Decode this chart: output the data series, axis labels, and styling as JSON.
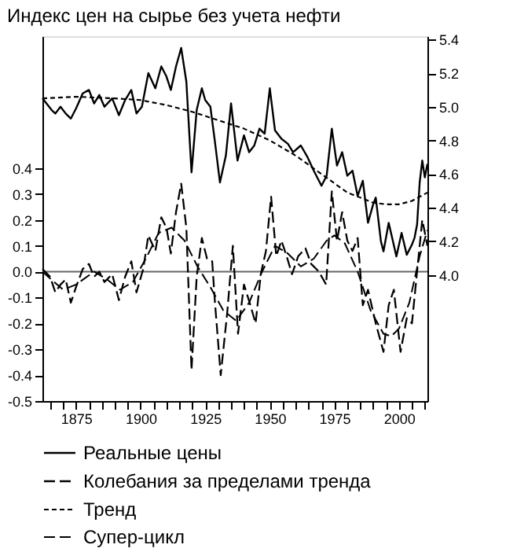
{
  "chart_data": {
    "type": "line",
    "title": "Индекс цен на сырье без учета нефти",
    "xlim": [
      1862,
      2011
    ],
    "xticks": [
      {
        "value": 1865,
        "label": null
      },
      {
        "value": 1870,
        "label": null
      },
      1875,
      {
        "value": 1880,
        "label": null
      },
      {
        "value": 1885,
        "label": null
      },
      {
        "value": 1890,
        "label": null
      },
      {
        "value": 1895,
        "label": null
      },
      1900,
      {
        "value": 1905,
        "label": null
      },
      {
        "value": 1910,
        "label": null
      },
      {
        "value": 1915,
        "label": null
      },
      {
        "value": 1920,
        "label": null
      },
      1925,
      {
        "value": 1930,
        "label": null
      },
      {
        "value": 1935,
        "label": null
      },
      {
        "value": 1940,
        "label": null
      },
      {
        "value": 1945,
        "label": null
      },
      1950,
      {
        "value": 1955,
        "label": null
      },
      {
        "value": 1960,
        "label": null
      },
      {
        "value": 1965,
        "label": null
      },
      {
        "value": 1970,
        "label": null
      },
      1975,
      {
        "value": 1980,
        "label": null
      },
      {
        "value": 1985,
        "label": null
      },
      {
        "value": 1990,
        "label": null
      },
      {
        "value": 1995,
        "label": null
      },
      2000,
      {
        "value": 2005,
        "label": null
      },
      {
        "value": 2010,
        "label": null
      }
    ],
    "ylim": [
      -0.5,
      0.91
    ],
    "yticks": [
      -0.5,
      -0.4,
      -0.3,
      -0.2,
      -0.1,
      {
        "value": 0,
        "label": "0.0"
      },
      0.1,
      0.2,
      0.3,
      0.4
    ],
    "y2lim": [
      3.25,
      5.42
    ],
    "y2ticks": [
      {
        "value": 4,
        "label": "4.0"
      },
      4.2,
      4.4,
      4.6,
      4.8,
      {
        "value": 5,
        "label": "5.0"
      },
      5.2,
      5.4
    ],
    "grid": false,
    "legend": "bottom",
    "ref_lines": [
      {
        "axis": "y",
        "value": 0,
        "color": "#666666",
        "line_style": "solid"
      }
    ],
    "series": [
      {
        "name": "Реальные цены",
        "color": "#000000",
        "line_style": "solid",
        "axis": "y2",
        "x": [
          1862,
          1865.6,
          1867,
          1869,
          1871,
          1873,
          1875,
          1877.6,
          1880,
          1882,
          1884,
          1886,
          1889,
          1891.6,
          1894,
          1896.4,
          1898.4,
          1900.5,
          1903,
          1905.7,
          1908,
          1910,
          1911.7,
          1913.7,
          1915.7,
          1917.7,
          1919.7,
          1921.7,
          1923.7,
          1925,
          1927,
          1928.7,
          1930.7,
          1933,
          1935,
          1937.5,
          1940,
          1942,
          1944,
          1946,
          1948,
          1950,
          1952,
          1954.5,
          1957,
          1959,
          1962,
          1964.6,
          1967,
          1970,
          1972,
          1974,
          1976,
          1978,
          1980,
          1982,
          1984,
          1986,
          1988,
          1990,
          1991,
          1993,
          1994,
          1996,
          1999,
          2001,
          2003,
          2005,
          2006,
          2007,
          2008,
          2009,
          2010,
          2011
        ],
        "values": [
          5.05,
          4.98,
          4.96,
          5.0,
          4.96,
          4.93,
          4.99,
          5.08,
          5.1,
          5.02,
          5.07,
          5.0,
          5.05,
          4.95,
          5.04,
          5.1,
          4.96,
          5.0,
          5.2,
          5.11,
          5.24,
          5.18,
          5.1,
          5.24,
          5.35,
          5.15,
          4.61,
          4.98,
          5.11,
          5.04,
          5.0,
          4.8,
          4.55,
          4.71,
          5.02,
          4.68,
          4.83,
          4.73,
          4.77,
          4.87,
          4.84,
          5.11,
          4.86,
          4.81,
          4.78,
          4.73,
          4.77,
          4.7,
          4.62,
          4.53,
          4.59,
          4.87,
          4.65,
          4.73,
          4.59,
          4.62,
          4.47,
          4.56,
          4.31,
          4.42,
          4.46,
          4.2,
          4.14,
          4.31,
          4.11,
          4.25,
          4.12,
          4.18,
          4.22,
          4.3,
          4.55,
          4.68,
          4.58,
          4.66
        ]
      },
      {
        "name": "Колебания за пределами тренда",
        "color": "#000000",
        "line_style": "dashed",
        "axis": "y",
        "x": [
          1862,
          1865,
          1867,
          1869,
          1871,
          1873,
          1875,
          1877.6,
          1880,
          1882,
          1884,
          1886,
          1889,
          1891.6,
          1894,
          1896.4,
          1898.4,
          1901,
          1903,
          1905.7,
          1908,
          1910,
          1911.7,
          1913.7,
          1915.7,
          1917.7,
          1919.7,
          1921.7,
          1923.7,
          1925.7,
          1927.7,
          1928.7,
          1931,
          1933.5,
          1935.7,
          1937.7,
          1940,
          1942.5,
          1944.5,
          1946.5,
          1948.5,
          1950.5,
          1952.5,
          1954.5,
          1956.5,
          1958.6,
          1961,
          1963.8,
          1966,
          1969,
          1971.8,
          1974,
          1976,
          1978,
          1980,
          1982,
          1984,
          1986,
          1988,
          1991,
          1994,
          1996,
          1998,
          2000.6,
          2003,
          2005,
          2007,
          2009,
          2011
        ],
        "values": [
          0.01,
          -0.02,
          -0.08,
          -0.05,
          -0.03,
          -0.12,
          -0.06,
          0.01,
          0.03,
          -0.02,
          0.0,
          -0.04,
          -0.01,
          -0.11,
          -0.02,
          0.04,
          -0.08,
          0.01,
          0.14,
          0.08,
          0.21,
          0.17,
          0.07,
          0.23,
          0.34,
          0.17,
          -0.38,
          -0.02,
          0.13,
          0.05,
          0.04,
          -0.11,
          -0.4,
          -0.16,
          0.1,
          -0.24,
          -0.05,
          -0.13,
          -0.2,
          -0.01,
          0.08,
          0.29,
          0.06,
          0.12,
          0.06,
          -0.01,
          0.06,
          0.09,
          0.03,
          0.0,
          -0.05,
          0.31,
          0.12,
          0.23,
          0.12,
          0.08,
          0.13,
          -0.13,
          -0.07,
          -0.2,
          -0.31,
          -0.13,
          -0.07,
          -0.31,
          -0.18,
          -0.2,
          0.0,
          0.2,
          0.1
        ]
      },
      {
        "name": "Тренд",
        "color": "#000000",
        "line_style": "dotted",
        "axis": "y2",
        "x": [
          1862,
          1875,
          1890,
          1900,
          1910,
          1920,
          1930,
          1940,
          1950,
          1960,
          1970,
          1980,
          1990,
          1995,
          2000,
          2005,
          2011
        ],
        "values": [
          5.05,
          5.06,
          5.05,
          5.04,
          5.01,
          4.97,
          4.92,
          4.87,
          4.8,
          4.71,
          4.6,
          4.49,
          4.43,
          4.42,
          4.42,
          4.44,
          4.49
        ]
      },
      {
        "name": "Супер-цикл",
        "color": "#000000",
        "line_style": "dashed",
        "axis": "y",
        "x": [
          1862,
          1870,
          1875,
          1882,
          1887,
          1892,
          1897,
          1902,
          1907,
          1912,
          1917,
          1922,
          1927,
          1932,
          1937,
          1942,
          1947,
          1952,
          1957,
          1962,
          1967,
          1972,
          1975,
          1979,
          1984,
          1989,
          1994,
          1997,
          2000,
          2004,
          2008,
          2011
        ],
        "values": [
          0.0,
          -0.07,
          -0.05,
          0.0,
          -0.03,
          -0.07,
          -0.04,
          0.05,
          0.15,
          0.17,
          0.12,
          0.02,
          -0.06,
          -0.15,
          -0.19,
          -0.12,
          0.0,
          0.1,
          0.07,
          0.02,
          0.05,
          0.12,
          0.14,
          0.11,
          0.0,
          -0.15,
          -0.24,
          -0.25,
          -0.22,
          -0.12,
          0.06,
          0.16
        ]
      }
    ]
  }
}
